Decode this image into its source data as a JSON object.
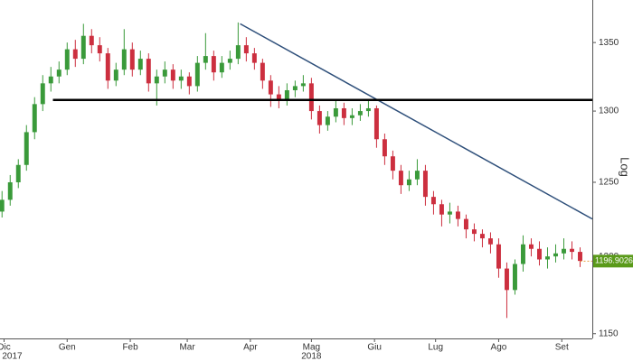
{
  "chart_data": {
    "type": "candlestick",
    "log_scale": true,
    "axis_label": "Log",
    "up_color": "#3a9a3a",
    "down_color": "#cc2f3f",
    "trendline_color": "#2e4f7a",
    "support_color": "#000000",
    "last_price": 1196.9026,
    "last_price_color": "#5a9a1a",
    "ylim": [
      1147,
      1382
    ],
    "yticks": [
      1150,
      1200,
      1250,
      1300,
      1350
    ],
    "xlim": [
      -2,
      289
    ],
    "xticks": [
      {
        "value": 0,
        "label": "Dic"
      },
      {
        "value": 31,
        "label": "Gen"
      },
      {
        "value": 62,
        "label": "Feb"
      },
      {
        "value": 90,
        "label": "Mar"
      },
      {
        "value": 121,
        "label": "Apr"
      },
      {
        "value": 151,
        "label": "Mag"
      },
      {
        "value": 182,
        "label": "Giu"
      },
      {
        "value": 212,
        "label": "Lug"
      },
      {
        "value": 243,
        "label": "Ago"
      },
      {
        "value": 274,
        "label": "Set"
      }
    ],
    "year_labels": [
      {
        "value": 4,
        "label": "2017"
      },
      {
        "value": 151,
        "label": "2018"
      }
    ],
    "x": [
      -1,
      3,
      7,
      11,
      15,
      19,
      23,
      27,
      31,
      35,
      39,
      43,
      47,
      51,
      55,
      59,
      63,
      67,
      71,
      75,
      79,
      83,
      87,
      91,
      95,
      99,
      103,
      107,
      111,
      115,
      119,
      123,
      127,
      131,
      135,
      139,
      143,
      147,
      151,
      155,
      159,
      163,
      167,
      171,
      175,
      179,
      183,
      187,
      191,
      195,
      199,
      203,
      207,
      211,
      215,
      219,
      223,
      227,
      231,
      235,
      239,
      243,
      247,
      251,
      255,
      259,
      263,
      267,
      271,
      275,
      279,
      283
    ],
    "open": [
      1230,
      1238,
      1250,
      1262,
      1285,
      1305,
      1320,
      1325,
      1330,
      1345,
      1338,
      1355,
      1348,
      1342,
      1322,
      1330,
      1345,
      1330,
      1338,
      1320,
      1325,
      1330,
      1322,
      1325,
      1318,
      1335,
      1340,
      1328,
      1335,
      1338,
      1348,
      1342,
      1335,
      1322,
      1312,
      1308,
      1315,
      1318,
      1320,
      1300,
      1290,
      1296,
      1302,
      1295,
      1297,
      1300,
      1302,
      1280,
      1268,
      1258,
      1248,
      1252,
      1258,
      1240,
      1235,
      1228,
      1230,
      1225,
      1218,
      1215,
      1212,
      1208,
      1192,
      1178,
      1195,
      1208,
      1205,
      1198,
      1200,
      1202,
      1205,
      1203
    ],
    "high": [
      1244,
      1255,
      1266,
      1290,
      1310,
      1326,
      1332,
      1336,
      1350,
      1352,
      1364,
      1360,
      1354,
      1346,
      1335,
      1360,
      1350,
      1344,
      1342,
      1330,
      1336,
      1334,
      1330,
      1328,
      1340,
      1357,
      1344,
      1340,
      1344,
      1365,
      1354,
      1346,
      1338,
      1326,
      1318,
      1320,
      1322,
      1326,
      1324,
      1304,
      1300,
      1308,
      1306,
      1302,
      1305,
      1308,
      1304,
      1284,
      1272,
      1262,
      1258,
      1266,
      1262,
      1244,
      1238,
      1236,
      1234,
      1228,
      1222,
      1218,
      1216,
      1212,
      1196,
      1198,
      1214,
      1212,
      1210,
      1206,
      1208,
      1212,
      1210,
      1206
    ],
    "low": [
      1226,
      1234,
      1246,
      1258,
      1280,
      1300,
      1314,
      1320,
      1326,
      1332,
      1334,
      1342,
      1336,
      1316,
      1318,
      1326,
      1325,
      1326,
      1314,
      1304,
      1320,
      1316,
      1316,
      1312,
      1314,
      1330,
      1322,
      1324,
      1330,
      1334,
      1336,
      1330,
      1316,
      1303,
      1302,
      1304,
      1310,
      1314,
      1294,
      1284,
      1286,
      1292,
      1290,
      1290,
      1293,
      1296,
      1274,
      1262,
      1252,
      1242,
      1244,
      1248,
      1234,
      1228,
      1220,
      1222,
      1220,
      1212,
      1210,
      1206,
      1202,
      1186,
      1160,
      1175,
      1190,
      1200,
      1194,
      1192,
      1196,
      1198,
      1198,
      1193
    ],
    "close": [
      1238,
      1250,
      1262,
      1285,
      1305,
      1320,
      1325,
      1330,
      1345,
      1338,
      1355,
      1348,
      1342,
      1322,
      1330,
      1345,
      1330,
      1338,
      1320,
      1325,
      1330,
      1322,
      1325,
      1318,
      1335,
      1340,
      1328,
      1335,
      1338,
      1348,
      1342,
      1335,
      1322,
      1312,
      1308,
      1315,
      1318,
      1320,
      1300,
      1290,
      1296,
      1302,
      1295,
      1297,
      1300,
      1302,
      1280,
      1268,
      1258,
      1248,
      1252,
      1258,
      1240,
      1235,
      1228,
      1230,
      1225,
      1218,
      1215,
      1212,
      1208,
      1192,
      1178,
      1195,
      1208,
      1205,
      1198,
      1200,
      1202,
      1205,
      1203,
      1197
    ],
    "trendlines": [
      {
        "x": [
          116,
          289
        ],
        "y": [
          1364,
          1225
        ]
      },
      {
        "x": [
          24,
          289
        ],
        "y": [
          1308,
          1308
        ]
      }
    ]
  }
}
